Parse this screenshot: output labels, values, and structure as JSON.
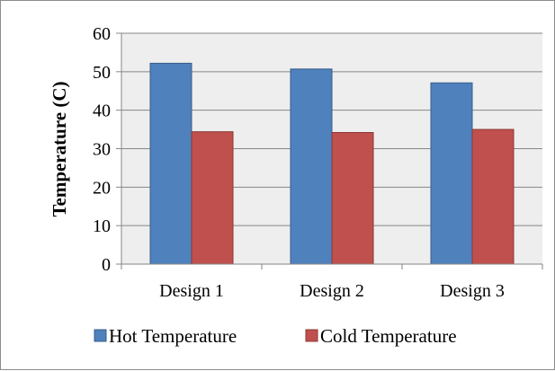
{
  "chart_data": {
    "type": "bar",
    "title": "",
    "xlabel": "",
    "ylabel": "Temperature (C)",
    "ylim": [
      0,
      60
    ],
    "yticks": [
      0,
      10,
      20,
      30,
      40,
      50,
      60
    ],
    "grid": true,
    "legend_position": "bottom",
    "categories": [
      "Design 1",
      "Design 2",
      "Design 3"
    ],
    "series": [
      {
        "name": "Hot Temperature",
        "values": [
          52.2,
          50.7,
          47.1
        ],
        "color": "#4f81bd",
        "stroke": "#385d8a"
      },
      {
        "name": "Cold Temperature",
        "values": [
          34.4,
          34.2,
          35.0
        ],
        "color": "#c0504d",
        "stroke": "#8c3836"
      }
    ],
    "plot_background": "#eeeeee",
    "gridline_color": "#868686"
  }
}
